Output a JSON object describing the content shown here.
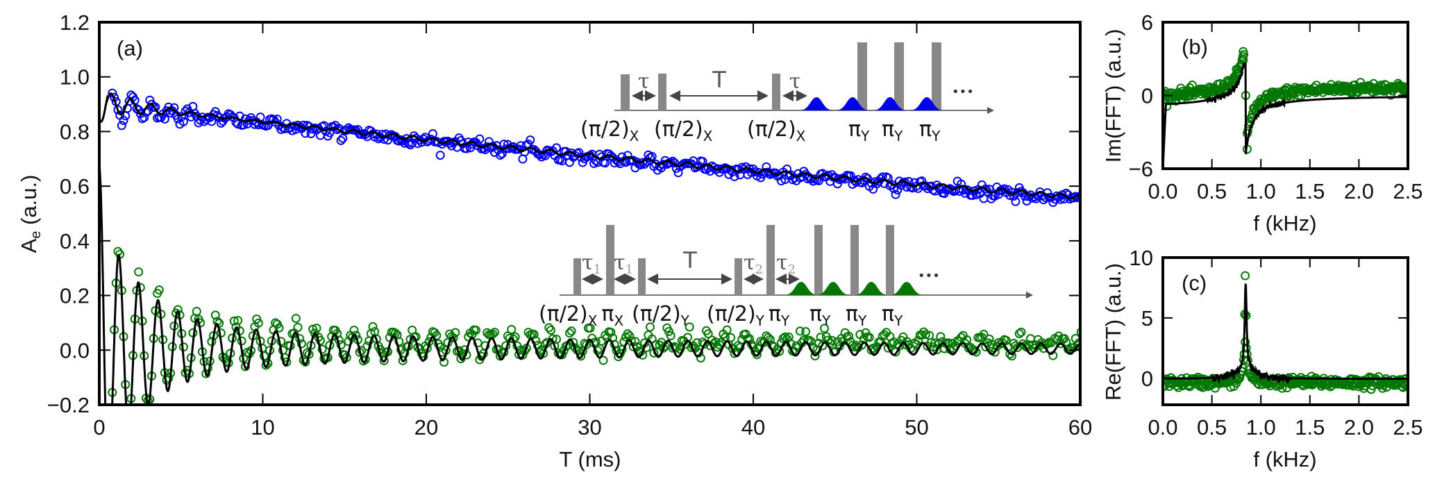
{
  "chart_data": [
    {
      "id": "a",
      "type": "scatter",
      "panel_label": "(a)",
      "xlabel": "T (ms)",
      "ylabel_main": "A",
      "ylabel_sub": "e",
      "ylabel_suffix": " (a.u.)",
      "xlim": [
        0,
        60
      ],
      "ylim": [
        -0.2,
        1.2
      ],
      "xticks": [
        0,
        10,
        20,
        30,
        40,
        50,
        60
      ],
      "xtick_labels": [
        "0",
        "10",
        "20",
        "30",
        "40",
        "50",
        "60"
      ],
      "yticks": [
        -0.2,
        0.0,
        0.2,
        0.4,
        0.6,
        0.8,
        1.0,
        1.2
      ],
      "ytick_labels": [
        "−0.2",
        "0.0",
        "0.2",
        "0.4",
        "0.6",
        "0.8",
        "1.0",
        "1.2"
      ],
      "grid": false,
      "series": [
        {
          "name": "blue data",
          "kind": "markers",
          "marker": "open-circle",
          "color": "#0000ee",
          "model": "0.91*exp(-T/130) with decaying oscillation amplitude 0.05, period 1.2 ms",
          "sample_points": [
            [
              0.8,
              1.02
            ],
            [
              1.0,
              0.97
            ],
            [
              1.5,
              0.88
            ],
            [
              2.5,
              0.92
            ],
            [
              3.3,
              0.8
            ],
            [
              5.0,
              0.8
            ],
            [
              10,
              0.84
            ],
            [
              20,
              0.76
            ],
            [
              30,
              0.7
            ],
            [
              40,
              0.66
            ],
            [
              50,
              0.61
            ],
            [
              60,
              0.57
            ]
          ]
        },
        {
          "name": "blue fit",
          "kind": "line",
          "color": "#000000",
          "sample_points": [
            [
              0,
              0.88
            ],
            [
              0.3,
              0.84
            ],
            [
              1.0,
              0.95
            ],
            [
              1.7,
              0.86
            ],
            [
              2.4,
              0.92
            ],
            [
              3.0,
              0.86
            ],
            [
              10,
              0.84
            ],
            [
              20,
              0.77
            ],
            [
              30,
              0.71
            ],
            [
              40,
              0.66
            ],
            [
              50,
              0.61
            ],
            [
              60,
              0.56
            ]
          ]
        },
        {
          "name": "green data",
          "kind": "markers",
          "marker": "open-circle",
          "color": "#007700",
          "model": "0.03 + 0.25*exp(-T/6) oscillation, period ~1.2 ms, decaying to small residual oscillation",
          "sample_points": [
            [
              1.0,
              0.17
            ],
            [
              1.8,
              -0.14
            ],
            [
              2.3,
              0.15
            ],
            [
              3.0,
              -0.11
            ],
            [
              3.6,
              0.12
            ],
            [
              10,
              0.06
            ],
            [
              20,
              0.04
            ],
            [
              30,
              0.03
            ],
            [
              40,
              0.02
            ],
            [
              50,
              0.02
            ],
            [
              60,
              0.03
            ]
          ]
        },
        {
          "name": "green fit",
          "kind": "line",
          "color": "#000000",
          "sample_points": [
            [
              0,
              0.38
            ],
            [
              0.4,
              -0.2
            ],
            [
              1.1,
              0.22
            ],
            [
              1.7,
              -0.14
            ],
            [
              2.3,
              0.13
            ],
            [
              2.9,
              -0.1
            ],
            [
              10,
              0.0
            ],
            [
              20,
              0.0
            ],
            [
              30,
              0.01
            ],
            [
              40,
              0.01
            ],
            [
              50,
              0.01
            ],
            [
              60,
              0.01
            ]
          ]
        }
      ],
      "insets": [
        {
          "name": "pulse-sequence-top",
          "labels": [
            "(π/2)",
            "X",
            "(π/2)",
            "X",
            "(π/2)",
            "X",
            "π",
            "Y",
            "π",
            "Y",
            "π",
            "Y"
          ],
          "tau": "τ",
          "T": "T",
          "ellipsis": "•••",
          "pulse_color": "#0000ee"
        },
        {
          "name": "pulse-sequence-bottom",
          "labels": [
            "(π/2)",
            "X",
            "π",
            "X",
            "(π/2)",
            "Y",
            "(π/2)",
            "Y",
            "π",
            "Y",
            "π",
            "Y",
            "π",
            "Y",
            "π",
            "Y"
          ],
          "tau1": "τ",
          "tau1_sub": "1",
          "tau2": "τ",
          "tau2_sub": "2",
          "T": "T",
          "ellipsis": "•••",
          "pulse_color": "#007700"
        }
      ]
    },
    {
      "id": "b",
      "type": "scatter",
      "panel_label": "(b)",
      "xlabel": "f (kHz)",
      "ylabel": "Im(FFT) (a.u.)",
      "xlim": [
        0,
        2.5
      ],
      "ylim": [
        -6,
        6
      ],
      "xticks": [
        0.0,
        0.5,
        1.0,
        1.5,
        2.0,
        2.5
      ],
      "xtick_labels": [
        "0.0",
        "0.5",
        "1.0",
        "1.5",
        "2.0",
        "2.5"
      ],
      "yticks": [
        -6,
        0,
        6
      ],
      "ytick_labels": [
        "−6",
        "0",
        "6"
      ],
      "grid": false,
      "series": [
        {
          "name": "data",
          "kind": "markers",
          "marker": "open-circle",
          "color": "#007700",
          "sample_points": [
            [
              0.05,
              0.3
            ],
            [
              0.3,
              0.4
            ],
            [
              0.6,
              1.0
            ],
            [
              0.78,
              2.2
            ],
            [
              0.82,
              3.6
            ],
            [
              0.82,
              3.0
            ],
            [
              0.85,
              0.0
            ],
            [
              0.86,
              -3.1
            ],
            [
              0.86,
              -4.4
            ],
            [
              1.0,
              -1.2
            ],
            [
              1.5,
              -0.3
            ],
            [
              2.0,
              -0.1
            ],
            [
              2.5,
              0.0
            ]
          ]
        },
        {
          "name": "fit",
          "kind": "line",
          "color": "#000000",
          "sample_points": [
            [
              0.0,
              -6
            ],
            [
              0.02,
              -1.0
            ],
            [
              0.1,
              -0.2
            ],
            [
              0.5,
              0.4
            ],
            [
              0.7,
              1.2
            ],
            [
              0.82,
              2.6
            ],
            [
              0.84,
              2.0
            ],
            [
              0.86,
              -3.3
            ],
            [
              0.9,
              -2.2
            ],
            [
              1.0,
              -1.8
            ],
            [
              1.5,
              -0.6
            ],
            [
              2.0,
              -0.3
            ],
            [
              2.5,
              -0.2
            ]
          ]
        }
      ]
    },
    {
      "id": "c",
      "type": "scatter",
      "panel_label": "(c)",
      "xlabel": "f (kHz)",
      "ylabel": "Re(FFT) (a.u.)",
      "xlim": [
        0,
        2.5
      ],
      "ylim": [
        -2.2,
        10
      ],
      "xticks": [
        0.0,
        0.5,
        1.0,
        1.5,
        2.0,
        2.5
      ],
      "xtick_labels": [
        "0.0",
        "0.5",
        "1.0",
        "1.5",
        "2.0",
        "2.5"
      ],
      "yticks": [
        0,
        5,
        10
      ],
      "ytick_labels": [
        "0",
        "5",
        "10"
      ],
      "grid": false,
      "series": [
        {
          "name": "data",
          "kind": "markers",
          "marker": "open-circle",
          "color": "#007700",
          "sample_points": [
            [
              0.05,
              -0.2
            ],
            [
              0.5,
              -0.3
            ],
            [
              0.75,
              0.2
            ],
            [
              0.82,
              3.0
            ],
            [
              0.84,
              5.2
            ],
            [
              0.84,
              8.5
            ],
            [
              0.86,
              2.5
            ],
            [
              1.0,
              -0.4
            ],
            [
              1.5,
              -0.2
            ],
            [
              2.0,
              -0.3
            ],
            [
              2.5,
              -0.2
            ]
          ]
        },
        {
          "name": "fit",
          "kind": "line",
          "color": "#000000",
          "sample_points": [
            [
              0.0,
              0.0
            ],
            [
              0.5,
              0.1
            ],
            [
              0.7,
              0.8
            ],
            [
              0.8,
              2.0
            ],
            [
              0.84,
              7.2
            ],
            [
              0.88,
              2.0
            ],
            [
              1.0,
              0.6
            ],
            [
              1.2,
              0.2
            ],
            [
              1.5,
              0.0
            ],
            [
              2.0,
              0.0
            ],
            [
              2.5,
              0.0
            ]
          ]
        }
      ]
    }
  ]
}
